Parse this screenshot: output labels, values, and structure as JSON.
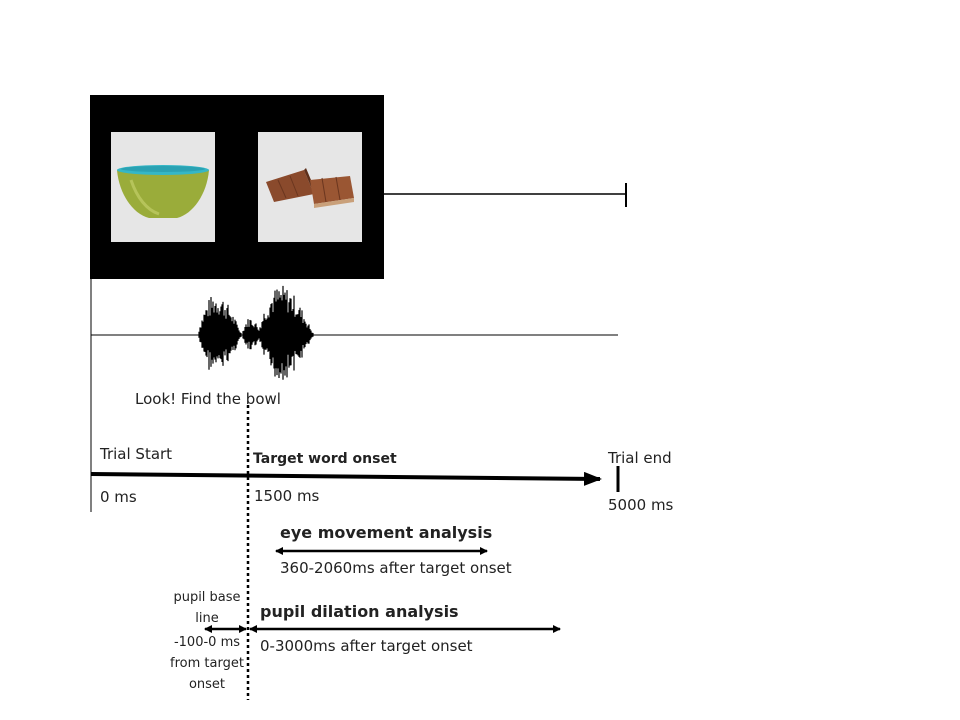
{
  "stimulus": {
    "left_image": "bowl",
    "right_image": "chocolate",
    "sentence": "Look! Find the bowl"
  },
  "timeline": {
    "start_label": "Trial Start",
    "start_time": "0 ms",
    "onset_label": "Target word onset",
    "onset_time": "1500 ms",
    "end_label": "Trial end",
    "end_time": "5000 ms"
  },
  "analyses": {
    "eye_title": "eye movement analysis",
    "eye_window": "360-2060ms after target onset",
    "pupil_title": "pupil dilation analysis",
    "pupil_window": "0-3000ms after target onset",
    "baseline_title": "pupil base line",
    "baseline_window": "-100-0 ms from target onset"
  },
  "colors": {
    "bowl_body": "#9aac3a",
    "bowl_rim": "#35b7c6",
    "chocolate": "#8a4a2c",
    "screen": "#000000"
  }
}
